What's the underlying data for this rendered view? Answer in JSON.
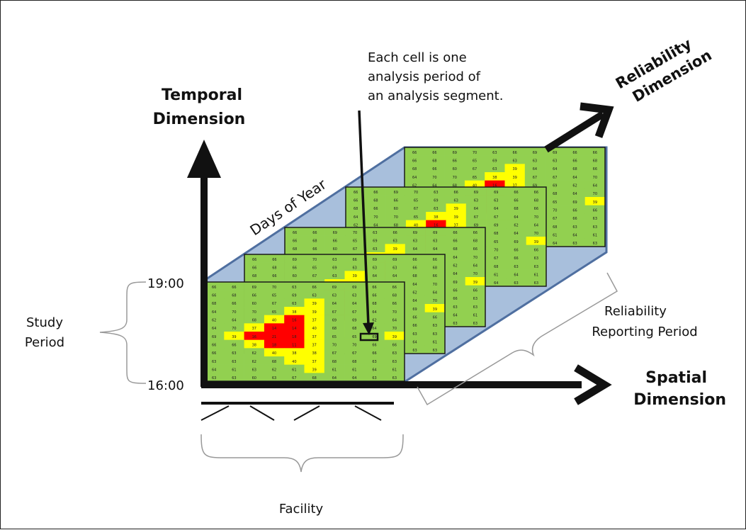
{
  "labels": {
    "temporal_line1": "Temporal",
    "temporal_line2": "Dimension",
    "reliability_line1": "Reliability",
    "reliability_line2": "Dimension",
    "spatial_line1": "Spatial",
    "spatial_line2": "Dimension",
    "days_of_year": "Days of Year",
    "note_line1": "Each cell is one",
    "note_line2": "analysis period of",
    "note_line3": "an analysis segment.",
    "time_top": "19:00",
    "time_bottom": "16:00",
    "study_line1": "Study",
    "study_line2": "Period",
    "reporting_line1": "Reliability",
    "reporting_line2": "Reporting Period",
    "facility": "Facility"
  },
  "grid": {
    "rows": 12,
    "cols": 10,
    "values": [
      [
        66,
        66,
        69,
        70,
        63,
        66,
        69,
        69,
        66,
        66
      ],
      [
        66,
        68,
        66,
        65,
        69,
        63,
        63,
        63,
        66,
        68
      ],
      [
        68,
        66,
        60,
        67,
        63,
        39,
        64,
        64,
        68,
        66
      ],
      [
        64,
        70,
        70,
        65,
        38,
        39,
        67,
        67,
        64,
        70
      ],
      [
        62,
        64,
        68,
        40,
        16,
        37,
        69,
        69,
        62,
        64
      ],
      [
        64,
        70,
        37,
        14,
        14,
        40,
        68,
        68,
        64,
        70
      ],
      [
        69,
        39,
        16,
        21,
        18,
        37,
        65,
        65,
        69,
        39
      ],
      [
        66,
        66,
        38,
        18,
        11,
        37,
        70,
        70,
        66,
        66
      ],
      [
        66,
        63,
        62,
        40,
        38,
        38,
        67,
        67,
        66,
        63
      ],
      [
        63,
        63,
        62,
        68,
        40,
        37,
        68,
        68,
        63,
        63
      ],
      [
        64,
        61,
        63,
        62,
        61,
        39,
        61,
        61,
        64,
        61
      ],
      [
        63,
        63,
        60,
        63,
        67,
        68,
        64,
        64,
        63,
        63
      ]
    ],
    "colors": {
      "green": "#92d050",
      "yellow": "#ffff00",
      "red": "#ff0000",
      "plane": "#a8bfdc",
      "plane_edge": "#4f6fa0"
    }
  }
}
